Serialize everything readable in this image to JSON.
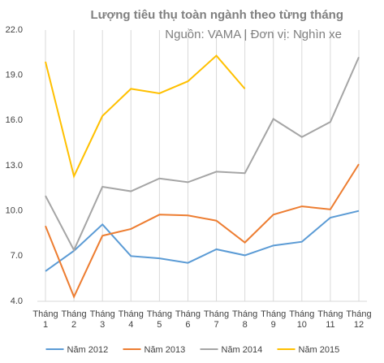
{
  "chart_data": {
    "type": "line",
    "title": "Lượng tiêu thụ toàn ngành theo từng tháng",
    "subtitle": "Nguồn: VAMA | Đơn vị: Nghìn xe",
    "categories": [
      "Tháng 1",
      "Tháng 2",
      "Tháng 3",
      "Tháng 4",
      "Tháng 5",
      "Tháng 6",
      "Tháng 7",
      "Tháng 8",
      "Tháng 9",
      "Tháng 10",
      "Tháng 11",
      "Tháng 12"
    ],
    "series": [
      {
        "name": "Năm 2012",
        "color": "#5b9bd5",
        "values": [
          6.0,
          7.35,
          9.1,
          7.0,
          6.85,
          6.55,
          7.45,
          7.05,
          7.7,
          7.95,
          9.55,
          10.0
        ]
      },
      {
        "name": "Năm 2013",
        "color": "#ed7d31",
        "values": [
          9.0,
          4.3,
          8.35,
          8.8,
          9.75,
          9.7,
          9.35,
          7.9,
          9.75,
          10.3,
          10.1,
          13.1
        ]
      },
      {
        "name": "Năm 2014",
        "color": "#a5a5a5",
        "values": [
          11.0,
          7.4,
          11.6,
          11.3,
          12.15,
          11.9,
          12.6,
          12.5,
          16.1,
          14.9,
          15.9,
          20.2
        ]
      },
      {
        "name": "Năm 2015",
        "color": "#ffc000",
        "values": [
          19.9,
          12.3,
          16.3,
          18.1,
          17.8,
          18.6,
          20.3,
          18.1,
          null,
          null,
          null,
          null
        ]
      }
    ],
    "ylim": [
      4,
      22
    ],
    "yticks": [
      {
        "value": 4,
        "label": "4.0"
      },
      {
        "value": 7,
        "label": "7.0"
      },
      {
        "value": 10,
        "label": "10.0"
      },
      {
        "value": 13,
        "label": "13.0"
      },
      {
        "value": 16,
        "label": "16.0"
      },
      {
        "value": 19,
        "label": "19.0"
      },
      {
        "value": 22,
        "label": "22.0"
      }
    ],
    "grid": "x",
    "legend": "bottom"
  }
}
